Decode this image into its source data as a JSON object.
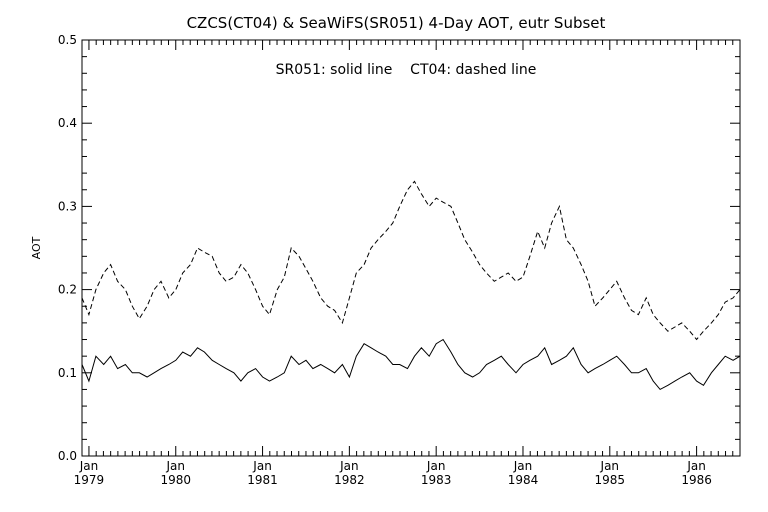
{
  "chart_data": {
    "type": "line",
    "title": "CZCS(CT04) & SeaWiFS(SR051) 4-Day AOT, eutr Subset",
    "annotation": "SR051: solid line    CT04: dashed line",
    "xlabel": "",
    "ylabel": "AOT",
    "xlim": [
      1978.92,
      1986.5
    ],
    "ylim": [
      0.0,
      0.5
    ],
    "grid": false,
    "x_ticks": [
      {
        "value": 1979.0,
        "month": "Jan",
        "year": "1979"
      },
      {
        "value": 1980.0,
        "month": "Jan",
        "year": "1980"
      },
      {
        "value": 1981.0,
        "month": "Jan",
        "year": "1981"
      },
      {
        "value": 1982.0,
        "month": "Jan",
        "year": "1982"
      },
      {
        "value": 1983.0,
        "month": "Jan",
        "year": "1983"
      },
      {
        "value": 1984.0,
        "month": "Jan",
        "year": "1984"
      },
      {
        "value": 1985.0,
        "month": "Jan",
        "year": "1985"
      },
      {
        "value": 1986.0,
        "month": "Jan",
        "year": "1986"
      }
    ],
    "y_ticks": [
      "0.0",
      "0.1",
      "0.2",
      "0.3",
      "0.4",
      "0.5"
    ],
    "series": [
      {
        "name": "SR051",
        "style": "solid",
        "color": "#000000",
        "x": [
          1978.92,
          1979.0,
          1979.08,
          1979.17,
          1979.25,
          1979.33,
          1979.42,
          1979.5,
          1979.58,
          1979.67,
          1979.75,
          1979.83,
          1979.92,
          1980.0,
          1980.08,
          1980.17,
          1980.25,
          1980.33,
          1980.42,
          1980.5,
          1980.58,
          1980.67,
          1980.75,
          1980.83,
          1980.92,
          1981.0,
          1981.08,
          1981.17,
          1981.25,
          1981.33,
          1981.42,
          1981.5,
          1981.58,
          1981.67,
          1981.75,
          1981.83,
          1981.92,
          1982.0,
          1982.08,
          1982.17,
          1982.25,
          1982.33,
          1982.42,
          1982.5,
          1982.58,
          1982.67,
          1982.75,
          1982.83,
          1982.92,
          1983.0,
          1983.08,
          1983.17,
          1983.25,
          1983.33,
          1983.42,
          1983.5,
          1983.58,
          1983.67,
          1983.75,
          1983.83,
          1983.92,
          1984.0,
          1984.08,
          1984.17,
          1984.25,
          1984.33,
          1984.42,
          1984.5,
          1984.58,
          1984.67,
          1984.75,
          1984.83,
          1984.92,
          1985.0,
          1985.08,
          1985.17,
          1985.25,
          1985.33,
          1985.42,
          1985.5,
          1985.58,
          1985.67,
          1985.75,
          1985.83,
          1985.92,
          1986.0,
          1986.08,
          1986.17,
          1986.25,
          1986.33,
          1986.42,
          1986.5
        ],
        "y": [
          0.11,
          0.09,
          0.12,
          0.11,
          0.12,
          0.105,
          0.11,
          0.1,
          0.1,
          0.095,
          0.1,
          0.105,
          0.11,
          0.115,
          0.125,
          0.12,
          0.13,
          0.125,
          0.115,
          0.11,
          0.105,
          0.1,
          0.09,
          0.1,
          0.105,
          0.095,
          0.09,
          0.095,
          0.1,
          0.12,
          0.11,
          0.115,
          0.105,
          0.11,
          0.105,
          0.1,
          0.11,
          0.095,
          0.12,
          0.135,
          0.13,
          0.125,
          0.12,
          0.11,
          0.11,
          0.105,
          0.12,
          0.13,
          0.12,
          0.135,
          0.14,
          0.125,
          0.11,
          0.1,
          0.095,
          0.1,
          0.11,
          0.115,
          0.12,
          0.11,
          0.1,
          0.11,
          0.115,
          0.12,
          0.13,
          0.11,
          0.115,
          0.12,
          0.13,
          0.11,
          0.1,
          0.105,
          0.11,
          0.115,
          0.12,
          0.11,
          0.1,
          0.1,
          0.105,
          0.09,
          0.08,
          0.085,
          0.09,
          0.095,
          0.1,
          0.09,
          0.085,
          0.1,
          0.11,
          0.12,
          0.115,
          0.12
        ]
      },
      {
        "name": "CT04",
        "style": "dashed",
        "color": "#000000",
        "x": [
          1978.92,
          1979.0,
          1979.08,
          1979.17,
          1979.25,
          1979.33,
          1979.42,
          1979.5,
          1979.58,
          1979.67,
          1979.75,
          1979.83,
          1979.92,
          1980.0,
          1980.08,
          1980.17,
          1980.25,
          1980.33,
          1980.42,
          1980.5,
          1980.58,
          1980.67,
          1980.75,
          1980.83,
          1980.92,
          1981.0,
          1981.08,
          1981.17,
          1981.25,
          1981.33,
          1981.42,
          1981.5,
          1981.58,
          1981.67,
          1981.75,
          1981.83,
          1981.92,
          1982.0,
          1982.08,
          1982.17,
          1982.25,
          1982.33,
          1982.42,
          1982.5,
          1982.58,
          1982.67,
          1982.75,
          1982.83,
          1982.92,
          1983.0,
          1983.08,
          1983.17,
          1983.25,
          1983.33,
          1983.42,
          1983.5,
          1983.58,
          1983.67,
          1983.75,
          1983.83,
          1983.92,
          1984.0,
          1984.08,
          1984.17,
          1984.25,
          1984.33,
          1984.42,
          1984.5,
          1984.58,
          1984.67,
          1984.75,
          1984.83,
          1984.92,
          1985.0,
          1985.08,
          1985.17,
          1985.25,
          1985.33,
          1985.42,
          1985.5,
          1985.58,
          1985.67,
          1985.75,
          1985.83,
          1985.92,
          1986.0,
          1986.08,
          1986.17,
          1986.25,
          1986.33,
          1986.42,
          1986.5
        ],
        "y": [
          0.19,
          0.17,
          0.2,
          0.22,
          0.23,
          0.21,
          0.2,
          0.18,
          0.165,
          0.18,
          0.2,
          0.21,
          0.19,
          0.2,
          0.22,
          0.23,
          0.25,
          0.245,
          0.24,
          0.22,
          0.21,
          0.215,
          0.23,
          0.22,
          0.2,
          0.18,
          0.17,
          0.2,
          0.215,
          0.25,
          0.24,
          0.225,
          0.21,
          0.19,
          0.18,
          0.175,
          0.16,
          0.19,
          0.22,
          0.23,
          0.25,
          0.26,
          0.27,
          0.28,
          0.3,
          0.32,
          0.33,
          0.315,
          0.3,
          0.31,
          0.305,
          0.3,
          0.28,
          0.26,
          0.245,
          0.23,
          0.22,
          0.21,
          0.215,
          0.22,
          0.21,
          0.215,
          0.24,
          0.27,
          0.25,
          0.28,
          0.3,
          0.26,
          0.25,
          0.23,
          0.21,
          0.18,
          0.19,
          0.2,
          0.21,
          0.19,
          0.175,
          0.17,
          0.19,
          0.17,
          0.16,
          0.15,
          0.155,
          0.16,
          0.15,
          0.14,
          0.15,
          0.16,
          0.17,
          0.185,
          0.19,
          0.2
        ]
      }
    ]
  }
}
